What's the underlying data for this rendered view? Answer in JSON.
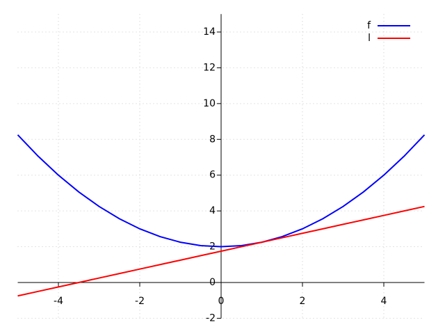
{
  "chart_data": {
    "type": "line",
    "x": [
      -5,
      -4.5,
      -4,
      -3.5,
      -3,
      -2.5,
      -2,
      -1.5,
      -1,
      -0.5,
      0,
      0.5,
      1,
      1.5,
      2,
      2.5,
      3,
      3.5,
      4,
      4.5,
      5
    ],
    "series": [
      {
        "name": "f",
        "color": "#0000ff",
        "values": [
          8.25,
          7.0625,
          6,
          5.0625,
          4.25,
          3.5625,
          3,
          2.5625,
          2.25,
          2.0625,
          2,
          2.0625,
          2.25,
          2.5625,
          3,
          3.5625,
          4.25,
          5.0625,
          6,
          7.0625,
          8.25
        ]
      },
      {
        "name": "l",
        "color": "#ff0000",
        "values": [
          -0.75,
          -0.5,
          -0.25,
          0,
          0.25,
          0.5,
          0.75,
          1,
          1.25,
          1.5,
          1.75,
          2,
          2.25,
          2.5,
          2.75,
          3,
          3.25,
          3.5,
          3.75,
          4,
          4.25
        ]
      }
    ],
    "xlim": [
      -5,
      5
    ],
    "ylim": [
      -2,
      15
    ],
    "xticks": [
      -4,
      -2,
      0,
      2,
      4
    ],
    "yticks": [
      -2,
      0,
      2,
      4,
      6,
      8,
      10,
      12,
      14
    ],
    "grid": true,
    "legend": "top-right"
  }
}
